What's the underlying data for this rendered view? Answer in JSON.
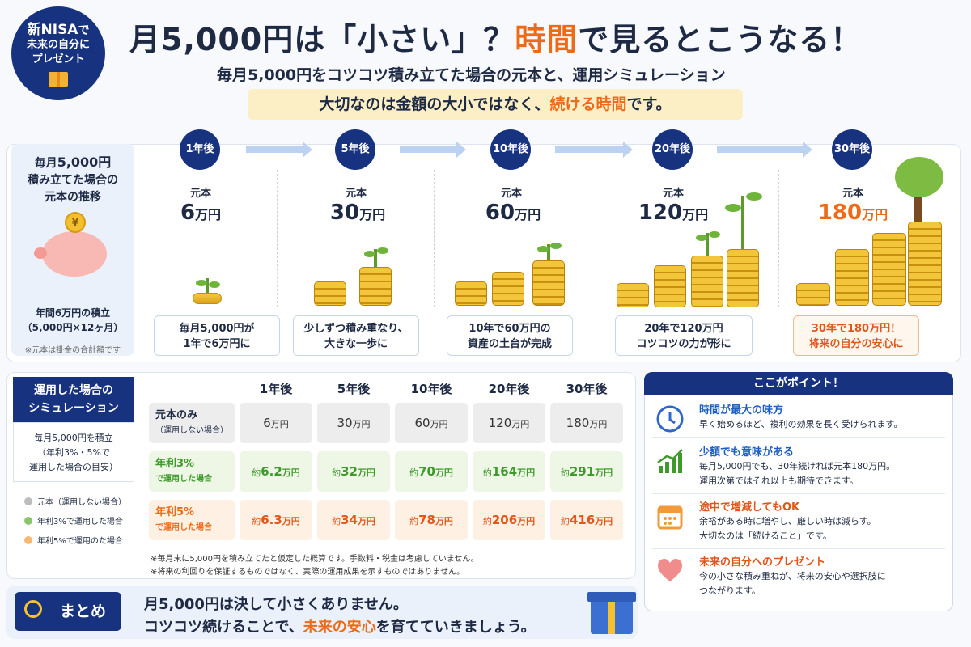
{
  "badge": {
    "line1a": "新NISA",
    "line1b": "で",
    "line2": "未来の自分に",
    "line3": "プレゼント"
  },
  "header": {
    "title_a": "月5,000円は「小さい」？",
    "title_accent": "時間",
    "title_b": "で見るとこうなる！",
    "subtitle": "毎月5,000円をコツコツ積み立てた場合の元本と、運用シミュレーション",
    "highlight_a": "大切なのは金額の大小ではなく、",
    "highlight_accent": "続ける時間",
    "highlight_b": "です。"
  },
  "left_box": {
    "l1a": "毎月",
    "l1b": "5,000円",
    "l2": "積み立てた場合の",
    "l3": "元本の推移",
    "coin": "¥",
    "n1": "年間6万円の積立",
    "n2": "（5,000円×12ヶ月）",
    "n3": "※元本は掛金の合計額です"
  },
  "timeline": {
    "principal_label": "元本",
    "unit": "万円",
    "steps": [
      {
        "year": "1年後",
        "value": "6",
        "cap1": "毎月5,000円が",
        "cap2": "1年で6万円に"
      },
      {
        "year": "5年後",
        "value": "30",
        "cap1": "少しずつ積み重なり、",
        "cap2": "大きな一歩に"
      },
      {
        "year": "10年後",
        "value": "60",
        "cap1": "10年で60万円の",
        "cap2": "資産の土台が完成"
      },
      {
        "year": "20年後",
        "value": "120",
        "cap1": "20年で120万円",
        "cap2": "コツコツの力が形に"
      },
      {
        "year": "30年後",
        "value": "180",
        "cap1": "30年で180万円！",
        "cap2": "将来の自分の安心に"
      }
    ]
  },
  "simulation": {
    "head1": "運用した場合の",
    "head2": "シミュレーション",
    "sub1": "毎月5,000円を積立",
    "sub2": "（年利3%・5%で",
    "sub3": "運用した場合の目安）",
    "legend": [
      "元本（運用しない場合）",
      "年利3%で運用した場合",
      "年利5%で運用のた場合"
    ],
    "legend_colors": [
      "#bdbdbd",
      "#8cc46b",
      "#f6b872"
    ],
    "cols": [
      "1年後",
      "5年後",
      "10年後",
      "20年後",
      "30年後"
    ],
    "unit": "万円",
    "approx": "約",
    "rows": [
      {
        "h1": "元本のみ",
        "h2": "（運用しない場合）",
        "vals": [
          "6",
          "30",
          "60",
          "120",
          "180"
        ]
      },
      {
        "h1": "年利3%",
        "h2": "で運用した場合",
        "vals": [
          "6.2",
          "32",
          "70",
          "164",
          "291"
        ]
      },
      {
        "h1": "年利5%",
        "h2": "で運用した場合",
        "vals": [
          "6.3",
          "34",
          "78",
          "206",
          "416"
        ]
      }
    ],
    "note1": "※毎月末に5,000円を積み立てたと仮定した概算です。手数料・税金は考慮していません。",
    "note2": "※将来の利回りを保証するものではなく、実際の運用成果を示すものではありません。"
  },
  "points": {
    "head": "ここがポイント！",
    "items": [
      {
        "icon": "clock-icon",
        "title": "時間が最大の味方",
        "d1": "早く始めるほど、複利の効果を長く受けられます。",
        "d2": ""
      },
      {
        "icon": "chart-up-icon",
        "title": "少額でも意味がある",
        "d1": "毎月5,000円でも、30年続ければ元本180万円。",
        "d2": "運用次第ではそれ以上も期待できます。"
      },
      {
        "icon": "calendar-icon",
        "title": "途中で増減してもOK",
        "d1": "余裕がある時に増やし、厳しい時は減らす。",
        "d2": "大切なのは「続けること」です。"
      },
      {
        "icon": "heart-icon",
        "title": "未来の自分へのプレゼント",
        "d1": "今の小さな積み重ねが、将来の安心や選択肢に",
        "d2": "つながります。"
      }
    ]
  },
  "summary": {
    "head": "まとめ",
    "l1": "月5,000円は決して小さくありません。",
    "l2a": "コツコツ続けることで、",
    "l2accent": "未来の安心",
    "l2b": "を育てていきましょう。"
  }
}
